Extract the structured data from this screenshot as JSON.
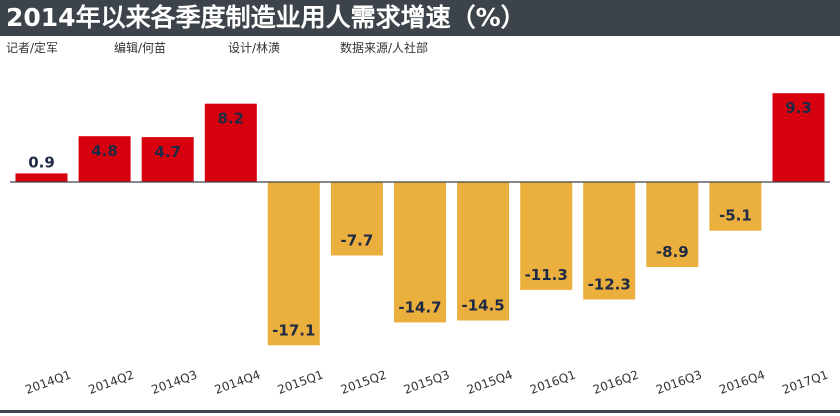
{
  "header": {
    "title": "2014年以来各季度制造业用人需求增速（%）",
    "credits": [
      "记者/定军",
      "编辑/何苗",
      "设计/林潢",
      "数据来源/人社部"
    ]
  },
  "colors": {
    "positive": "#d7000f",
    "negative": "#eaaf3c",
    "titlebar": "#3d434a",
    "label_on_bar": "#1f2a44",
    "axis_line": "#3d434a"
  },
  "chart_data": {
    "type": "bar",
    "title": "2014年以来各季度制造业用人需求增速（%）",
    "xlabel": "",
    "ylabel": "",
    "categories": [
      "2014Q1",
      "2014Q2",
      "2014Q3",
      "2014Q4",
      "2015Q1",
      "2015Q2",
      "2015Q3",
      "2015Q4",
      "2016Q1",
      "2016Q2",
      "2016Q3",
      "2016Q4",
      "2017Q1"
    ],
    "values": [
      0.9,
      4.8,
      4.7,
      8.2,
      -17.1,
      -7.7,
      -14.7,
      -14.5,
      -11.3,
      -12.3,
      -8.9,
      -5.1,
      9.3
    ],
    "value_labels": [
      "0.9",
      "4.8",
      "4.7",
      "8.2",
      "-17.1",
      "-7.7",
      "-14.7",
      "-14.5",
      "-11.3",
      "-12.3",
      "-8.9",
      "-5.1",
      "9.3"
    ],
    "ylim": [
      -18,
      10
    ],
    "grid": false,
    "legend": "none",
    "tick_label_rotation": "diagonal"
  }
}
